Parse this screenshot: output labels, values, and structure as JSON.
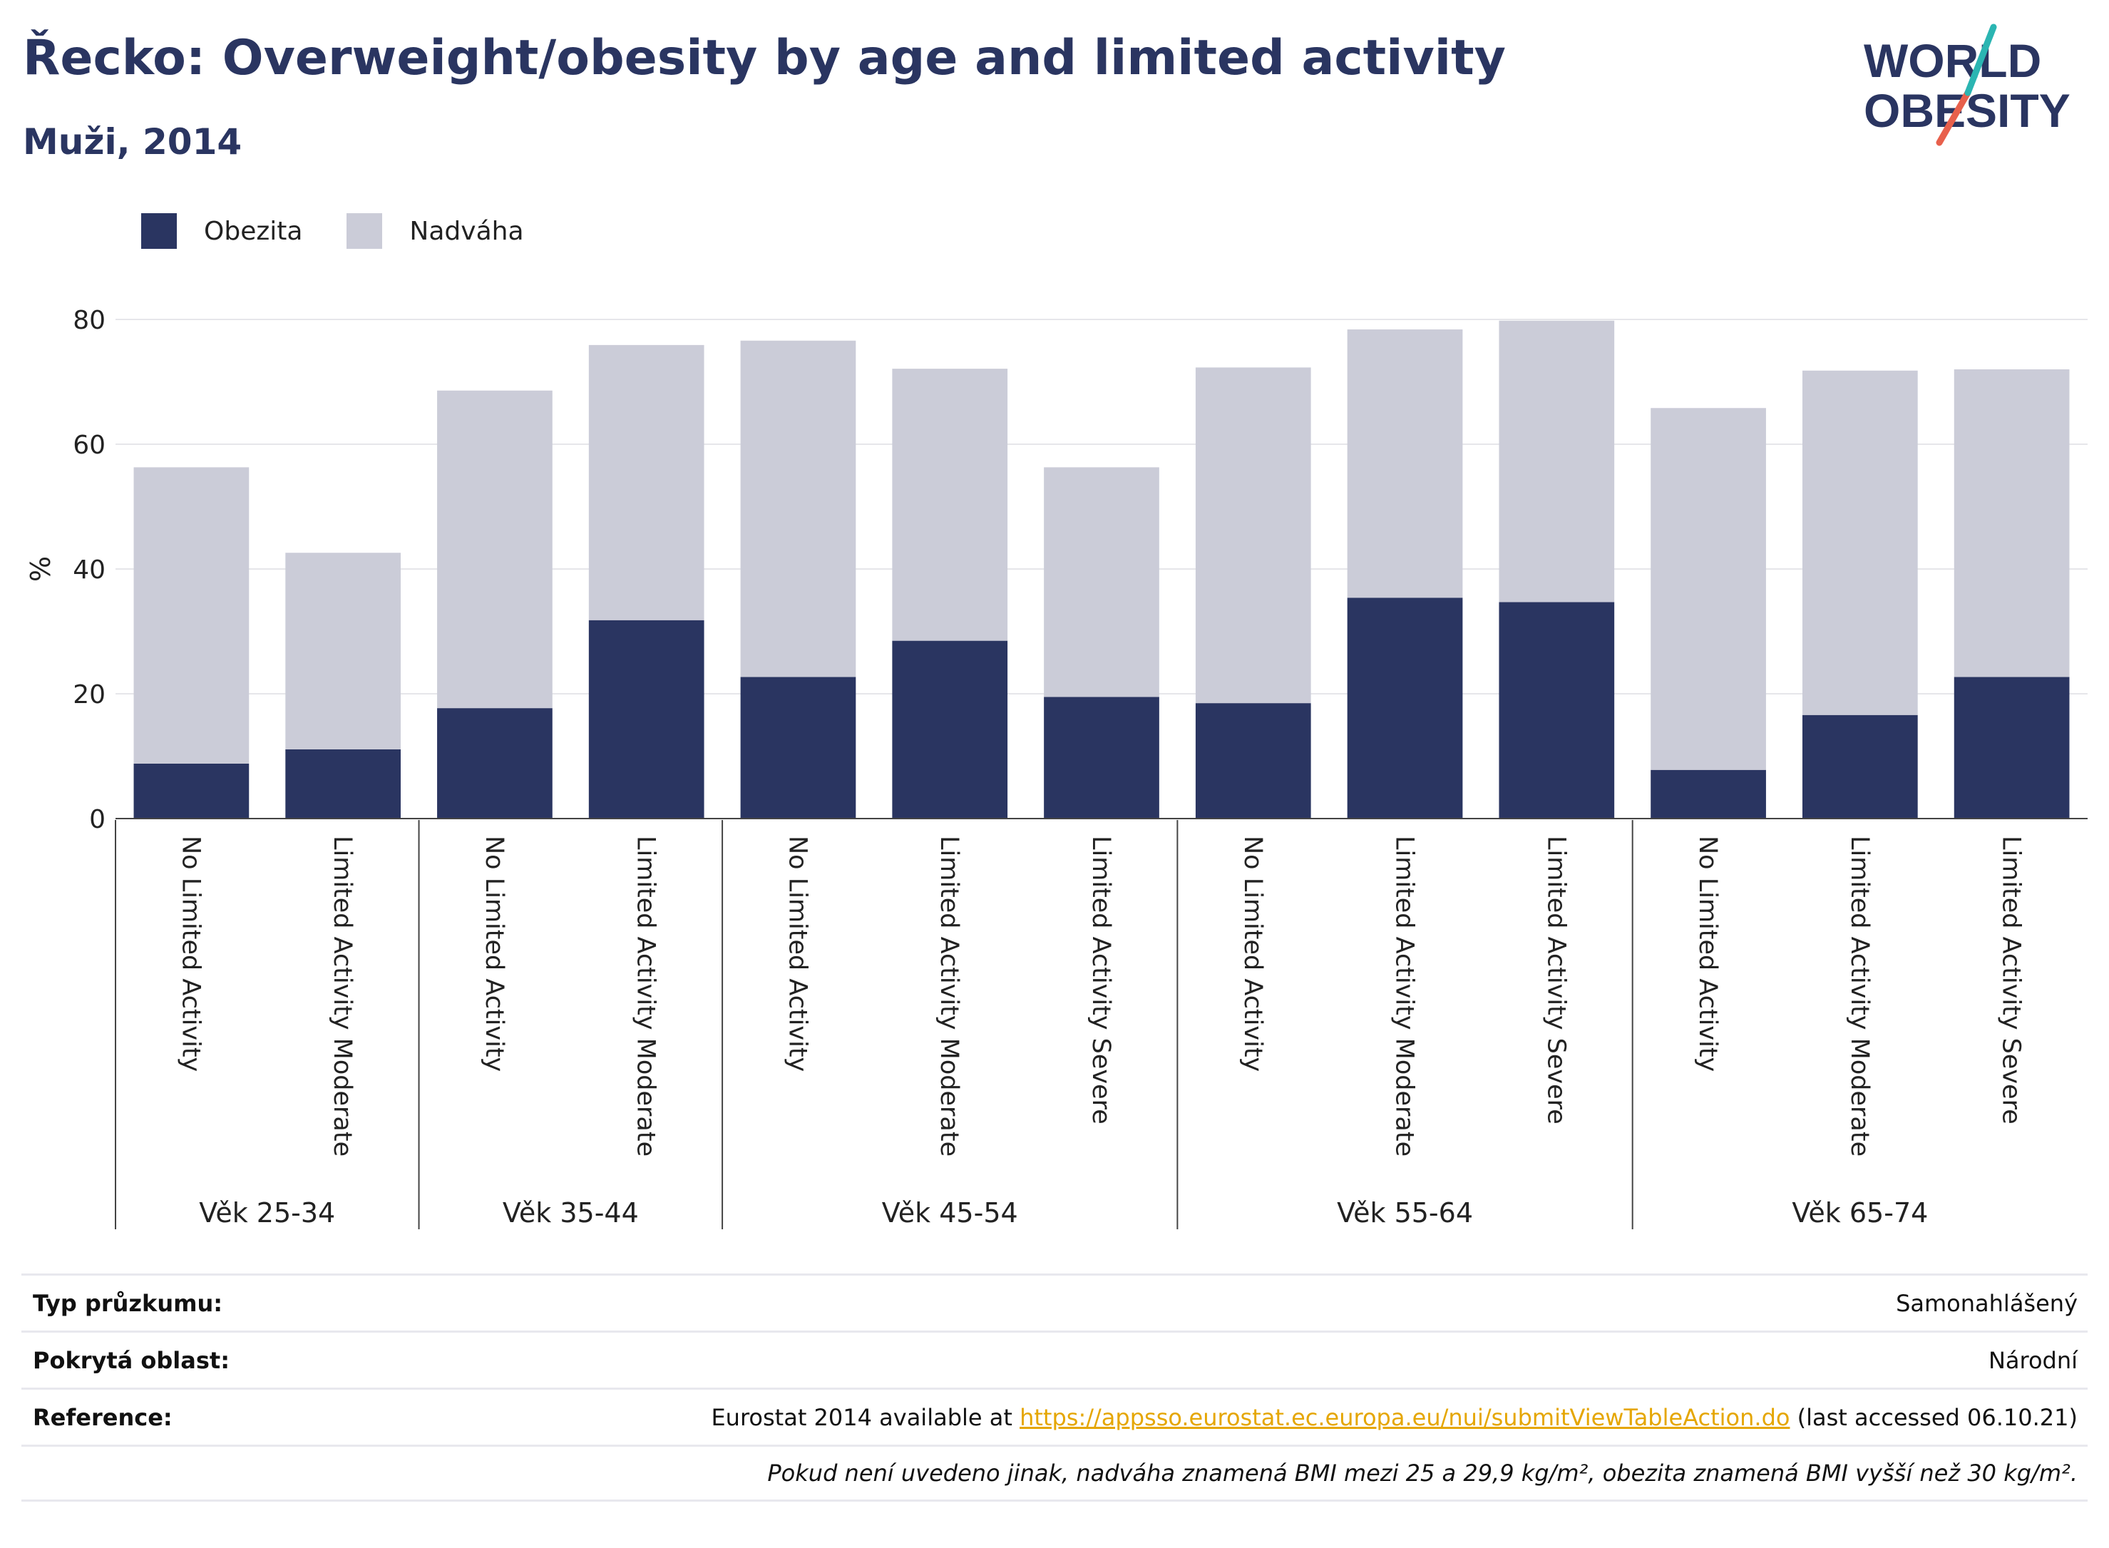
{
  "header": {
    "title": "Řecko: Overweight/obesity by age and limited activity",
    "subtitle": "Muži, 2014"
  },
  "logo": {
    "line1": "WORLD",
    "line2": "OBESITY"
  },
  "legend": {
    "items": [
      {
        "label": "Obezita",
        "color": "#2a3561"
      },
      {
        "label": "Nadváha",
        "color": "#cbccd8"
      }
    ]
  },
  "chart_data": {
    "type": "bar",
    "stacked": true,
    "ylabel": "%",
    "ylim": [
      0,
      80
    ],
    "yticks": [
      0,
      20,
      40,
      60,
      80
    ],
    "grid": true,
    "legend_position": "top-left",
    "groups": [
      {
        "label": "Věk 25-34",
        "categories": [
          "No Limited Activity",
          "Limited Activity Moderate"
        ]
      },
      {
        "label": "Věk 35-44",
        "categories": [
          "No Limited Activity",
          "Limited Activity Moderate"
        ]
      },
      {
        "label": "Věk 45-54",
        "categories": [
          "No Limited Activity",
          "Limited Activity Moderate",
          "Limited Activity Severe"
        ]
      },
      {
        "label": "Věk 55-64",
        "categories": [
          "No Limited Activity",
          "Limited Activity Moderate",
          "Limited Activity Severe"
        ]
      },
      {
        "label": "Věk 65-74",
        "categories": [
          "No Limited Activity",
          "Limited Activity Moderate",
          "Limited Activity Severe"
        ]
      }
    ],
    "series": [
      {
        "name": "Obezita",
        "color": "#2a3561",
        "values": [
          8.8,
          11.1,
          17.7,
          31.8,
          22.7,
          28.5,
          19.5,
          18.5,
          35.4,
          34.7,
          7.8,
          16.6,
          22.7
        ]
      },
      {
        "name": "Nadváha",
        "color": "#cbccd8",
        "values": [
          47.5,
          31.5,
          50.9,
          44.1,
          53.9,
          43.6,
          36.8,
          53.8,
          43.0,
          45.1,
          58.0,
          55.2,
          49.3
        ]
      }
    ]
  },
  "info": {
    "rows": [
      {
        "label": "Typ průzkumu:",
        "value": "Samonahlášený"
      },
      {
        "label": "Pokrytá oblast:",
        "value": "Národní"
      },
      {
        "label": "Reference:",
        "value_prefix": "Eurostat 2014 available at ",
        "link": "https://appsso.eurostat.ec.europa.eu/nui/submitViewTableAction.do",
        "value_suffix": " (last accessed 06.10.21)"
      }
    ],
    "note": "Pokud není uvedeno jinak, nadváha znamená BMI mezi 25 a 29,9 kg/m², obezita znamená BMI vyšší než 30 kg/m²."
  }
}
